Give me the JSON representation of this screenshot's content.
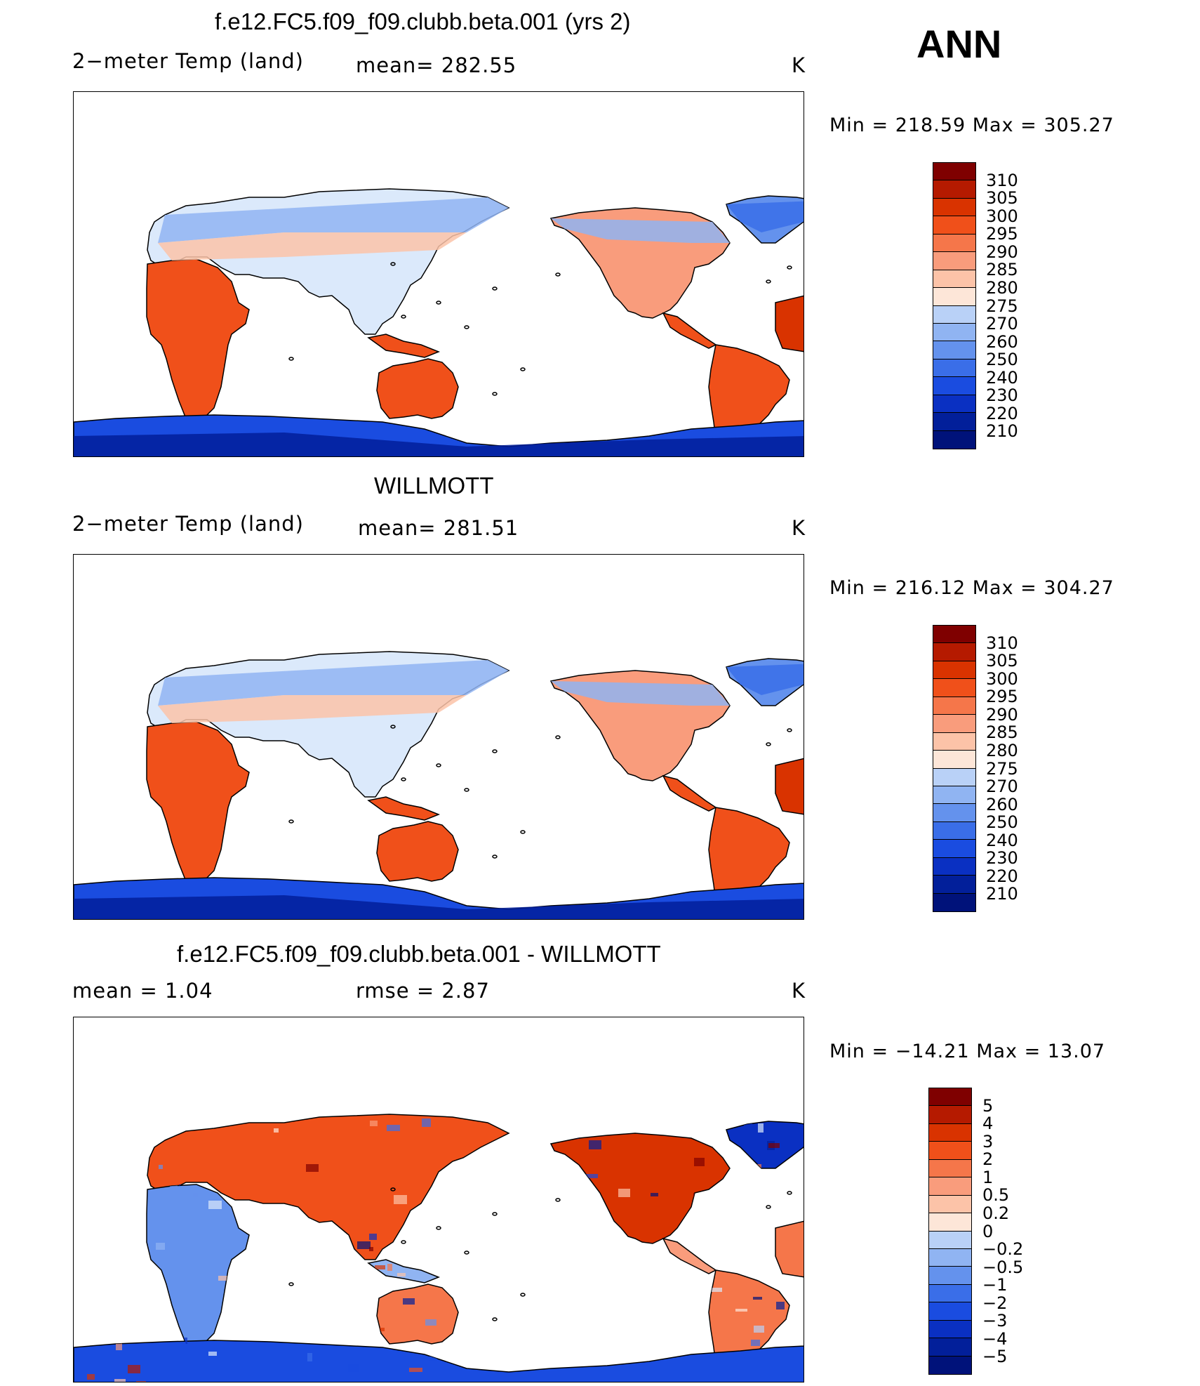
{
  "season": "ANN",
  "colors": {
    "abs": [
      "#7f0000",
      "#b51a00",
      "#d93300",
      "#f0501a",
      "#f5764a",
      "#f99c7c",
      "#fcc3a8",
      "#fde6d8",
      "#dbe9fb",
      "#b9d1f7",
      "#90b4f2",
      "#6492ed",
      "#3a6ee8",
      "#1a4ce0",
      "#0a30c2",
      "#021f9a",
      "#00127a"
    ],
    "diff": [
      "#7f0000",
      "#b51a00",
      "#d93300",
      "#f0501a",
      "#f5764a",
      "#f99c7c",
      "#fcc3a8",
      "#fde6d8",
      "#dbe9fb",
      "#b9d1f7",
      "#90b4f2",
      "#6492ed",
      "#3a6ee8",
      "#1a4ce0",
      "#0a30c2",
      "#021f9a",
      "#00127a"
    ]
  },
  "panels": [
    {
      "title": "f.e12.FC5.f09_f09.clubb.beta.001 (yrs 2)",
      "left": "2−meter Temp (land)",
      "center": "mean= 282.55",
      "units": "K",
      "minmax": "Min  =  218.59  Max  =  305.27",
      "levels": [
        "310",
        "305",
        "300",
        "295",
        "290",
        "285",
        "280",
        "275",
        "270",
        "260",
        "250",
        "240",
        "230",
        "220",
        "210"
      ],
      "field_mean": 282.55,
      "field_min": 218.59,
      "field_max": 305.27
    },
    {
      "title": "WILLMOTT",
      "left": "2−meter Temp (land)",
      "center": "mean= 281.51",
      "units": "K",
      "minmax": "Min  =  216.12  Max  =  304.27",
      "levels": [
        "310",
        "305",
        "300",
        "295",
        "290",
        "285",
        "280",
        "275",
        "270",
        "260",
        "250",
        "240",
        "230",
        "220",
        "210"
      ],
      "field_mean": 281.51,
      "field_min": 216.12,
      "field_max": 304.27
    },
    {
      "title": "f.e12.FC5.f09_f09.clubb.beta.001 - WILLMOTT",
      "left": "mean  =      1.04",
      "center": "rmse  =      2.87",
      "units": "K",
      "minmax": "Min  =  −14.21  Max  =     13.07",
      "levels": [
        "5",
        "4",
        "3",
        "2",
        "1",
        "0.5",
        "0.2",
        "0",
        "−0.2",
        "−0.5",
        "−1",
        "−2",
        "−3",
        "−4",
        "−5"
      ],
      "field_mean": 1.04,
      "field_rmse": 2.87,
      "field_min": -14.21,
      "field_max": 13.07
    }
  ]
}
